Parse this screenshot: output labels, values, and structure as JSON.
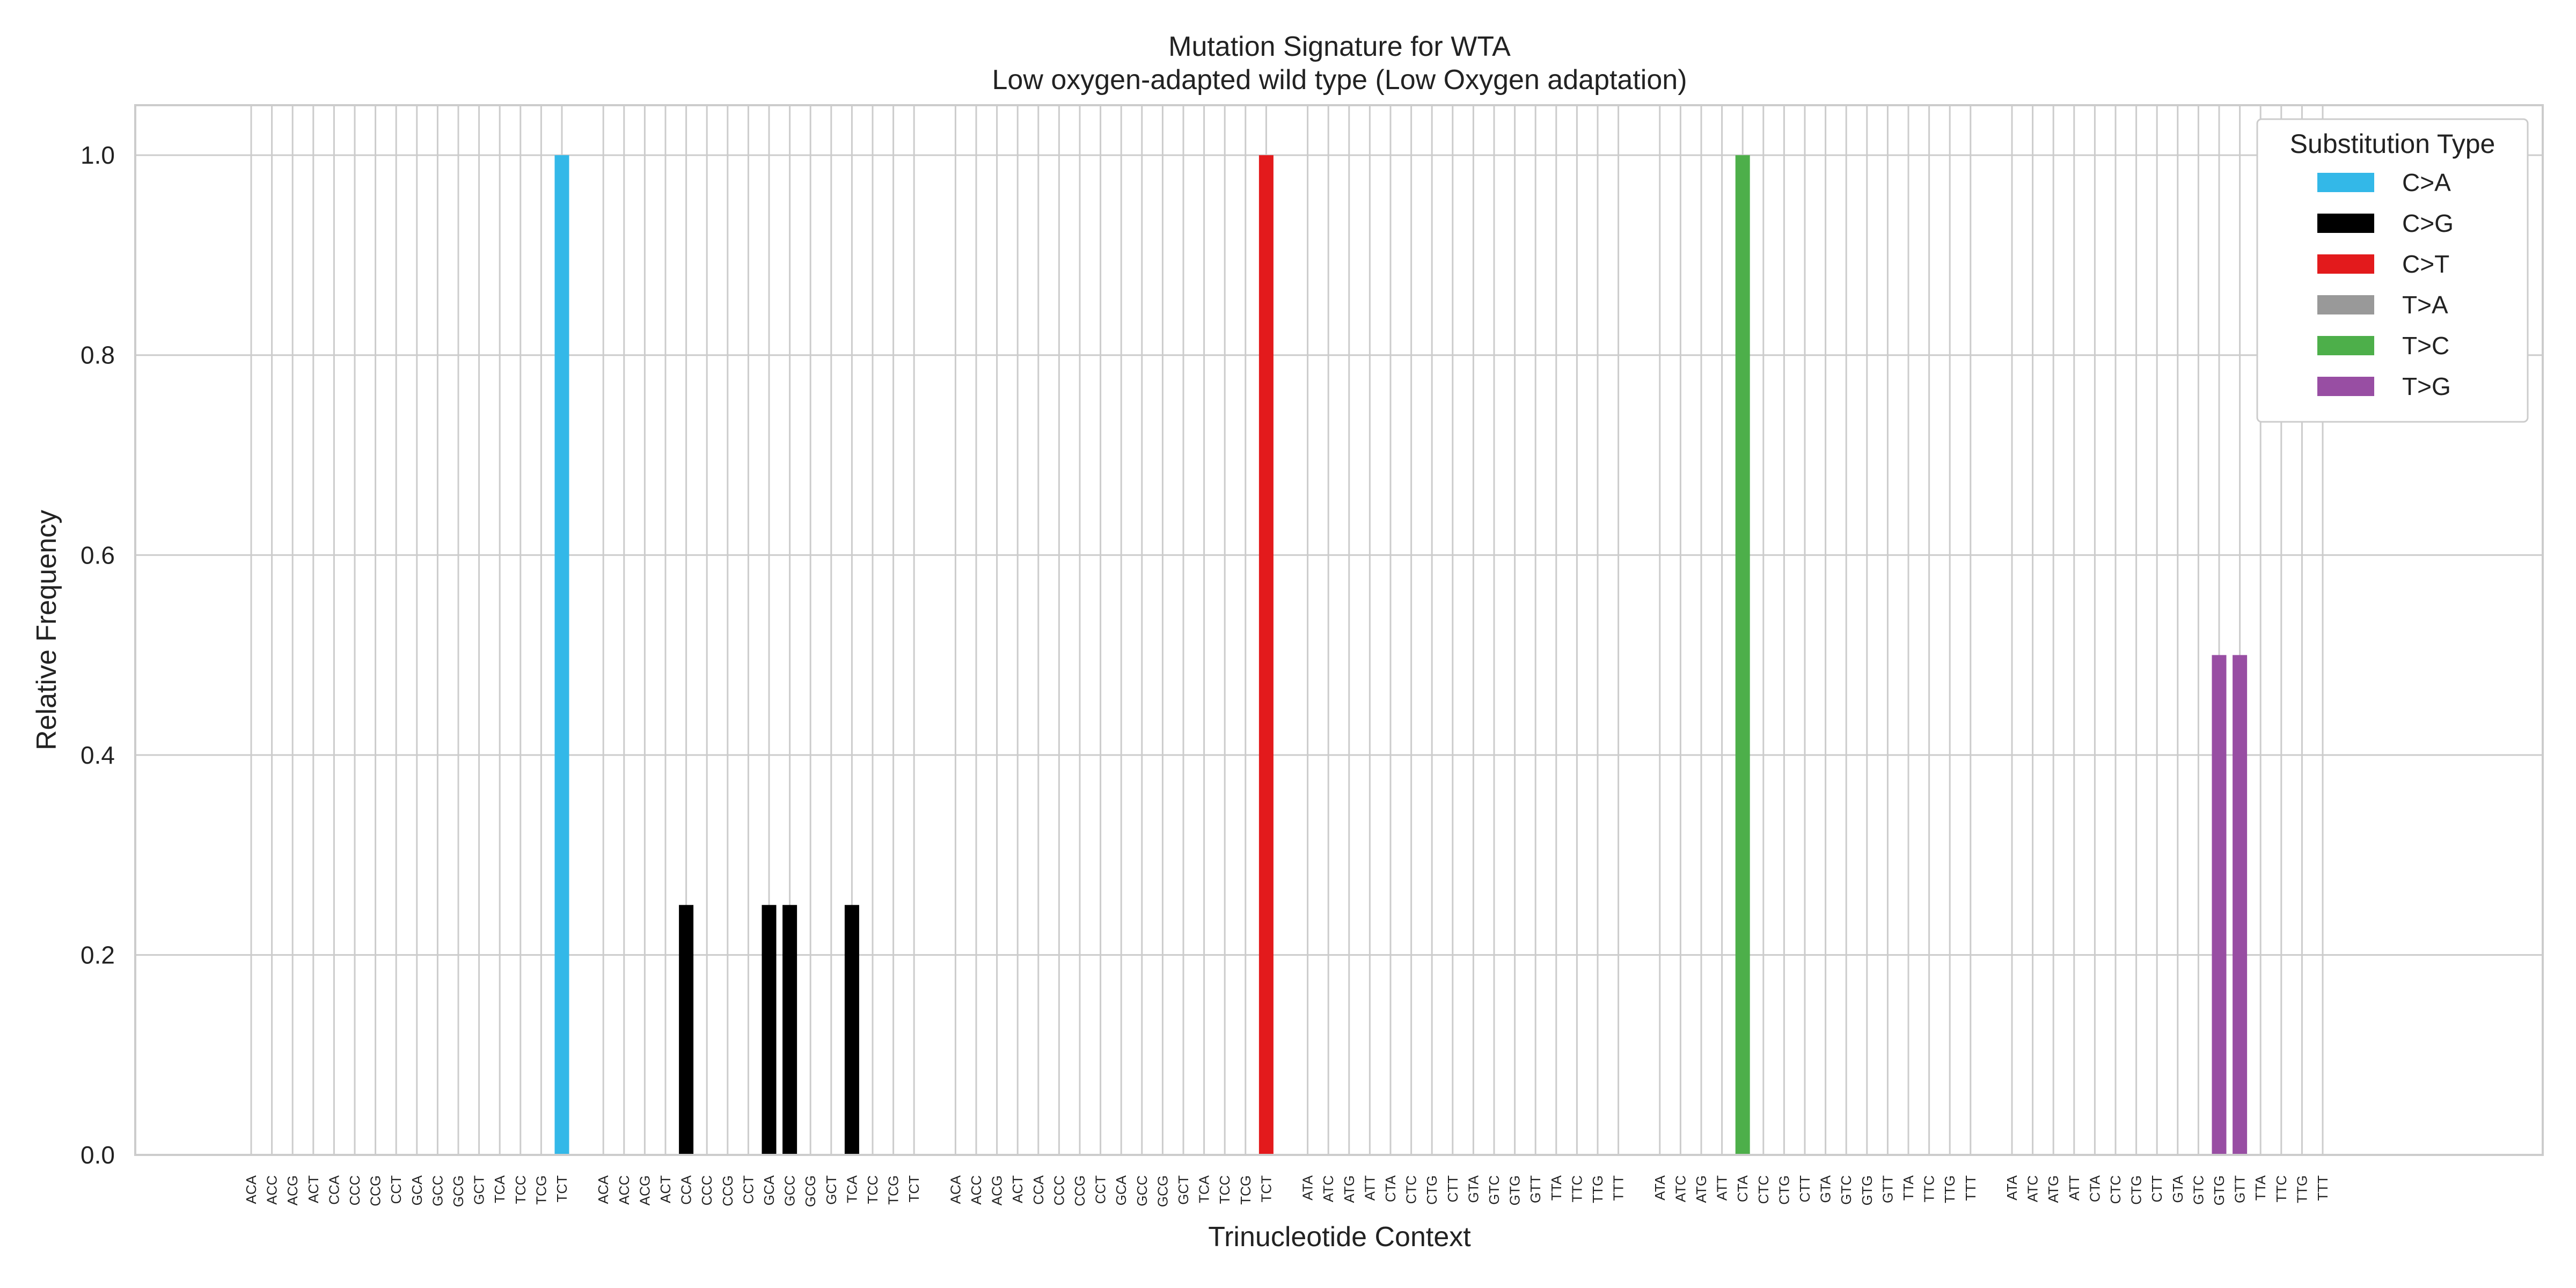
{
  "chart_data": {
    "type": "bar",
    "title": "Mutation Signature for WTA",
    "subtitle": "Low oxygen-adapted wild type (Low Oxygen adaptation)",
    "xlabel": "Trinucleotide Context",
    "ylabel": "Relative Frequency",
    "ylim": [
      0,
      1.05
    ],
    "yticks": [
      "0.0",
      "0.2",
      "0.4",
      "0.6",
      "0.8",
      "1.0"
    ],
    "grid": true,
    "legend_title": "Substitution Type",
    "legend_position": "top-right",
    "groups": [
      {
        "name": "C>A",
        "color": "#33b8e8",
        "contexts": [
          "ACA",
          "ACC",
          "ACG",
          "ACT",
          "CCA",
          "CCC",
          "CCG",
          "CCT",
          "GCA",
          "GCC",
          "GCG",
          "GCT",
          "TCA",
          "TCC",
          "TCG",
          "TCT"
        ],
        "values": [
          0,
          0,
          0,
          0,
          0,
          0,
          0,
          0,
          0,
          0,
          0,
          0,
          0,
          0,
          0,
          1.0
        ]
      },
      {
        "name": "C>G",
        "color": "#000000",
        "contexts": [
          "ACA",
          "ACC",
          "ACG",
          "ACT",
          "CCA",
          "CCC",
          "CCG",
          "CCT",
          "GCA",
          "GCC",
          "GCG",
          "GCT",
          "TCA",
          "TCC",
          "TCG",
          "TCT"
        ],
        "values": [
          0,
          0,
          0,
          0,
          0.25,
          0,
          0,
          0,
          0.25,
          0.25,
          0,
          0,
          0.25,
          0,
          0,
          0
        ]
      },
      {
        "name": "C>T",
        "color": "#e31a1c",
        "contexts": [
          "ACA",
          "ACC",
          "ACG",
          "ACT",
          "CCA",
          "CCC",
          "CCG",
          "CCT",
          "GCA",
          "GCC",
          "GCG",
          "GCT",
          "TCA",
          "TCC",
          "TCG",
          "TCT"
        ],
        "values": [
          0,
          0,
          0,
          0,
          0,
          0,
          0,
          0,
          0,
          0,
          0,
          0,
          0,
          0,
          0,
          1.0
        ]
      },
      {
        "name": "T>A",
        "color": "#999999",
        "contexts": [
          "ATA",
          "ATC",
          "ATG",
          "ATT",
          "CTA",
          "CTC",
          "CTG",
          "CTT",
          "GTA",
          "GTC",
          "GTG",
          "GTT",
          "TTA",
          "TTC",
          "TTG",
          "TTT"
        ],
        "values": [
          0,
          0,
          0,
          0,
          0,
          0,
          0,
          0,
          0,
          0,
          0,
          0,
          0,
          0,
          0,
          0
        ]
      },
      {
        "name": "T>C",
        "color": "#4daf4a",
        "contexts": [
          "ATA",
          "ATC",
          "ATG",
          "ATT",
          "CTA",
          "CTC",
          "CTG",
          "CTT",
          "GTA",
          "GTC",
          "GTG",
          "GTT",
          "TTA",
          "TTC",
          "TTG",
          "TTT"
        ],
        "values": [
          0,
          0,
          0,
          0,
          1.0,
          0,
          0,
          0,
          0,
          0,
          0,
          0,
          0,
          0,
          0,
          0
        ]
      },
      {
        "name": "T>G",
        "color": "#984ea3",
        "contexts": [
          "ATA",
          "ATC",
          "ATG",
          "ATT",
          "CTA",
          "CTC",
          "CTG",
          "CTT",
          "GTA",
          "GTC",
          "GTG",
          "GTT",
          "TTA",
          "TTC",
          "TTG",
          "TTT"
        ],
        "values": [
          0,
          0,
          0,
          0,
          0,
          0,
          0,
          0,
          0,
          0,
          0.5,
          0.5,
          0,
          0,
          0,
          0
        ]
      }
    ]
  }
}
